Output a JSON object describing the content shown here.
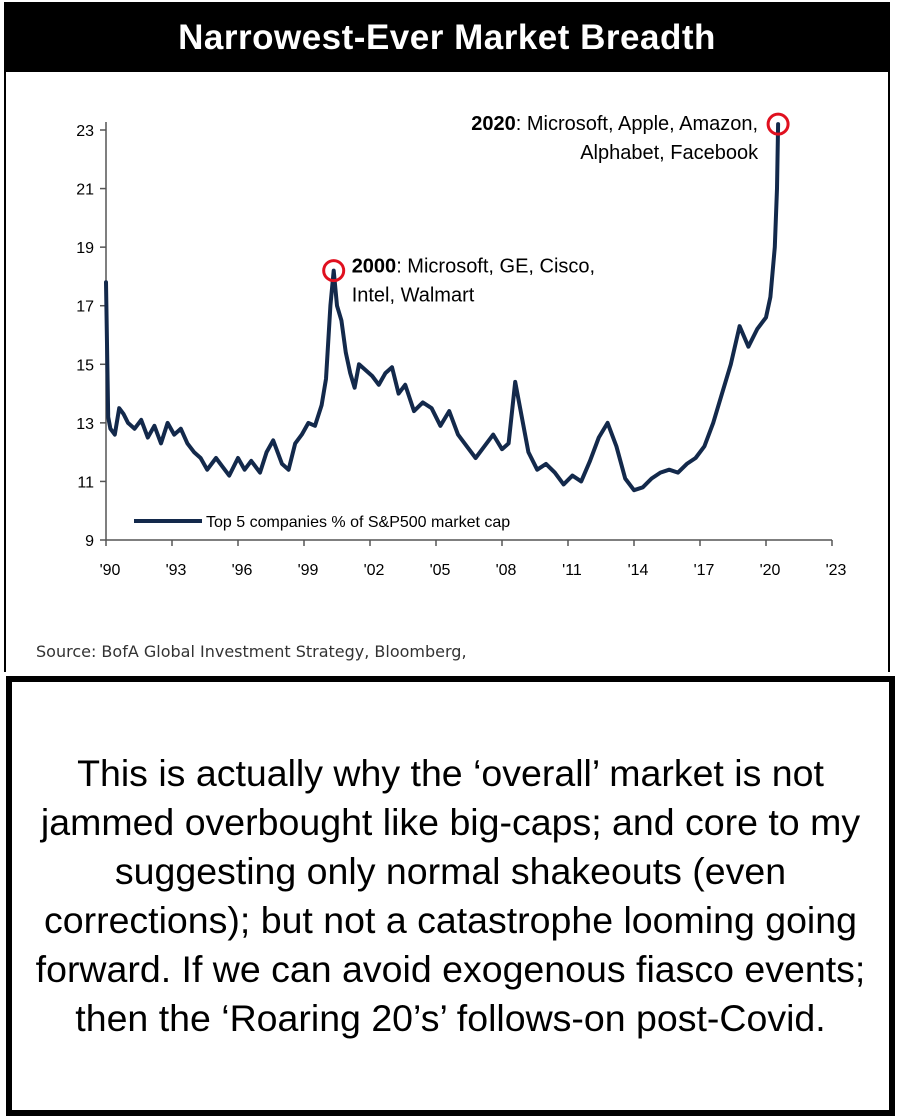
{
  "title": "Narrowest-Ever Market Breadth",
  "source": "Source: BofA Global Investment Strategy, Bloomberg,",
  "caption": "This is actually why the ‘overall’ market is not jammed overbought like big-caps; and core to my suggesting only normal shakeouts (even corrections); but not a catastrophe looming going forward. If we can avoid exogenous fiasco events; then the ‘Roaring 20’s’ follows-on post-Covid.",
  "colors": {
    "line": "#13294b",
    "highlight": "#e0101f",
    "title_bg": "#000000"
  },
  "chart_data": {
    "type": "line",
    "title": "Narrowest-Ever Market Breadth",
    "xlabel": "",
    "ylabel": "",
    "xlim": [
      1990,
      2023
    ],
    "ylim": [
      9,
      23
    ],
    "grid": false,
    "legend_position": "bottom-left",
    "x_ticks": [
      1990,
      1993,
      1996,
      1999,
      2002,
      2005,
      2008,
      2011,
      2014,
      2017,
      2020,
      2023
    ],
    "x_tick_labels": [
      "'90",
      "'93",
      "'96",
      "'99",
      "'02",
      "'05",
      "'08",
      "'11",
      "'14",
      "'17",
      "'20",
      "'23"
    ],
    "y_ticks": [
      9,
      11,
      13,
      15,
      17,
      19,
      21,
      23
    ],
    "y_tick_labels": [
      "9",
      "11",
      "13",
      "15",
      "17",
      "19",
      "21",
      "23"
    ],
    "series": [
      {
        "name": "Top 5 companies % of S&P500 market cap",
        "x": [
          1990.0,
          1990.1,
          1990.2,
          1990.4,
          1990.6,
          1990.8,
          1991.0,
          1991.3,
          1991.6,
          1991.9,
          1992.2,
          1992.5,
          1992.8,
          1993.1,
          1993.4,
          1993.7,
          1994.0,
          1994.3,
          1994.6,
          1995.0,
          1995.3,
          1995.6,
          1996.0,
          1996.3,
          1996.6,
          1997.0,
          1997.3,
          1997.6,
          1998.0,
          1998.3,
          1998.6,
          1998.9,
          1999.2,
          1999.5,
          1999.8,
          2000.0,
          2000.2,
          2000.35,
          2000.5,
          2000.7,
          2000.9,
          2001.1,
          2001.3,
          2001.5,
          2001.8,
          2002.1,
          2002.4,
          2002.7,
          2003.0,
          2003.3,
          2003.6,
          2004.0,
          2004.4,
          2004.8,
          2005.2,
          2005.6,
          2006.0,
          2006.4,
          2006.8,
          2007.2,
          2007.6,
          2008.0,
          2008.3,
          2008.6,
          2008.9,
          2009.2,
          2009.6,
          2010.0,
          2010.4,
          2010.8,
          2011.2,
          2011.6,
          2012.0,
          2012.4,
          2012.8,
          2013.2,
          2013.6,
          2014.0,
          2014.4,
          2014.8,
          2015.2,
          2015.6,
          2016.0,
          2016.4,
          2016.8,
          2017.2,
          2017.6,
          2018.0,
          2018.4,
          2018.8,
          2019.2,
          2019.6,
          2020.0,
          2020.2,
          2020.4,
          2020.5,
          2020.55
        ],
        "y": [
          17.8,
          13.2,
          12.8,
          12.6,
          13.5,
          13.3,
          13.0,
          12.8,
          13.1,
          12.5,
          12.9,
          12.3,
          13.0,
          12.6,
          12.8,
          12.3,
          12.0,
          11.8,
          11.4,
          11.8,
          11.5,
          11.2,
          11.8,
          11.4,
          11.7,
          11.3,
          12.0,
          12.4,
          11.6,
          11.4,
          12.3,
          12.6,
          13.0,
          12.9,
          13.6,
          14.5,
          17.0,
          18.2,
          17.0,
          16.5,
          15.4,
          14.7,
          14.2,
          15.0,
          14.8,
          14.6,
          14.3,
          14.7,
          14.9,
          14.0,
          14.3,
          13.4,
          13.7,
          13.5,
          12.9,
          13.4,
          12.6,
          12.2,
          11.8,
          12.2,
          12.6,
          12.1,
          12.3,
          14.4,
          13.2,
          12.0,
          11.4,
          11.6,
          11.3,
          10.9,
          11.2,
          11.0,
          11.7,
          12.5,
          13.0,
          12.2,
          11.1,
          10.7,
          10.8,
          11.1,
          11.3,
          11.4,
          11.3,
          11.6,
          11.8,
          12.2,
          13.0,
          14.0,
          15.0,
          16.3,
          15.6,
          16.2,
          16.6,
          17.3,
          19.0,
          21.0,
          23.2
        ]
      }
    ],
    "annotations": [
      {
        "bold": "2000",
        "lines": [
          ": Microsoft, GE, Cisco,",
          "Intel, Walmart"
        ],
        "x": 2000.35,
        "y": 18.2
      },
      {
        "bold": "2020",
        "lines": [
          ": Microsoft, Apple, Amazon,",
          "Alphabet, Facebook"
        ],
        "x": 2020.55,
        "y": 23.2
      }
    ]
  }
}
